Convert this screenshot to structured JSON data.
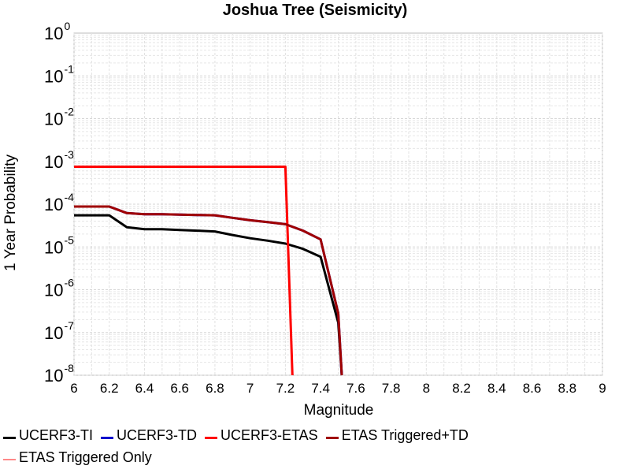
{
  "chart_data": {
    "type": "line",
    "title": "Joshua Tree (Seismicity)",
    "xlabel": "Magnitude",
    "ylabel": "1 Year Probability",
    "xlim": [
      6,
      9
    ],
    "ylim": [
      1e-08,
      1
    ],
    "yscale": "log",
    "grid": true,
    "legend_position": "bottom",
    "x_ticks": [
      "6",
      "6.2",
      "6.4",
      "6.6",
      "6.8",
      "7",
      "7.2",
      "7.4",
      "7.6",
      "7.8",
      "8",
      "8.2",
      "8.4",
      "8.6",
      "8.8",
      "9"
    ],
    "y_ticks": [
      {
        "base": "10",
        "exp": "0"
      },
      {
        "base": "10",
        "exp": "-1"
      },
      {
        "base": "10",
        "exp": "-2"
      },
      {
        "base": "10",
        "exp": "-3"
      },
      {
        "base": "10",
        "exp": "-4"
      },
      {
        "base": "10",
        "exp": "-5"
      },
      {
        "base": "10",
        "exp": "-6"
      },
      {
        "base": "10",
        "exp": "-7"
      },
      {
        "base": "10",
        "exp": "-8"
      }
    ],
    "series": [
      {
        "name": "UCERF3-TI",
        "color": "#000000",
        "x": [
          6.0,
          6.1,
          6.2,
          6.3,
          6.4,
          6.5,
          6.6,
          6.7,
          6.8,
          6.9,
          7.0,
          7.1,
          7.2,
          7.3,
          7.4,
          7.5,
          7.52
        ],
        "y": [
          5.5e-05,
          5.5e-05,
          5.5e-05,
          2.9e-05,
          2.6e-05,
          2.6e-05,
          2.5e-05,
          2.4e-05,
          2.3e-05,
          1.9e-05,
          1.6e-05,
          1.4e-05,
          1.2e-05,
          9e-06,
          5.9e-06,
          1.7e-07,
          1e-08
        ]
      },
      {
        "name": "UCERF3-TD",
        "color": "#0000cc",
        "x": [
          6.0,
          6.1,
          6.2,
          6.3,
          6.4,
          6.5,
          6.6,
          6.7,
          6.8,
          6.9,
          7.0,
          7.1,
          7.2,
          7.3,
          7.4,
          7.5,
          7.52
        ],
        "y": [
          8.8e-05,
          8.8e-05,
          8.8e-05,
          6.2e-05,
          5.8e-05,
          5.8e-05,
          5.7e-05,
          5.6e-05,
          5.5e-05,
          4.8e-05,
          4.2e-05,
          3.8e-05,
          3.4e-05,
          2.4e-05,
          1.5e-05,
          2.8e-07,
          1e-08
        ]
      },
      {
        "name": "UCERF3-ETAS",
        "color": "#ff0000",
        "x": [
          6.0,
          7.2,
          7.24
        ],
        "y": [
          0.00075,
          0.00075,
          1e-08
        ]
      },
      {
        "name": "ETAS Triggered+TD",
        "color": "#a00000",
        "x": [
          6.0,
          6.1,
          6.2,
          6.3,
          6.4,
          6.5,
          6.6,
          6.7,
          6.8,
          6.9,
          7.0,
          7.1,
          7.2,
          7.3,
          7.4,
          7.5,
          7.52
        ],
        "y": [
          8.8e-05,
          8.8e-05,
          8.8e-05,
          6.2e-05,
          5.8e-05,
          5.8e-05,
          5.7e-05,
          5.6e-05,
          5.5e-05,
          4.8e-05,
          4.2e-05,
          3.8e-05,
          3.4e-05,
          2.4e-05,
          1.5e-05,
          2.8e-07,
          1e-08
        ]
      },
      {
        "name": "ETAS Triggered Only",
        "color": "#ff8888",
        "x": [],
        "y": []
      }
    ]
  },
  "legend": {
    "rows": [
      [
        "UCERF3-TI",
        "UCERF3-TD",
        "UCERF3-ETAS",
        "ETAS Triggered+TD"
      ],
      [
        "ETAS Triggered Only"
      ]
    ]
  }
}
